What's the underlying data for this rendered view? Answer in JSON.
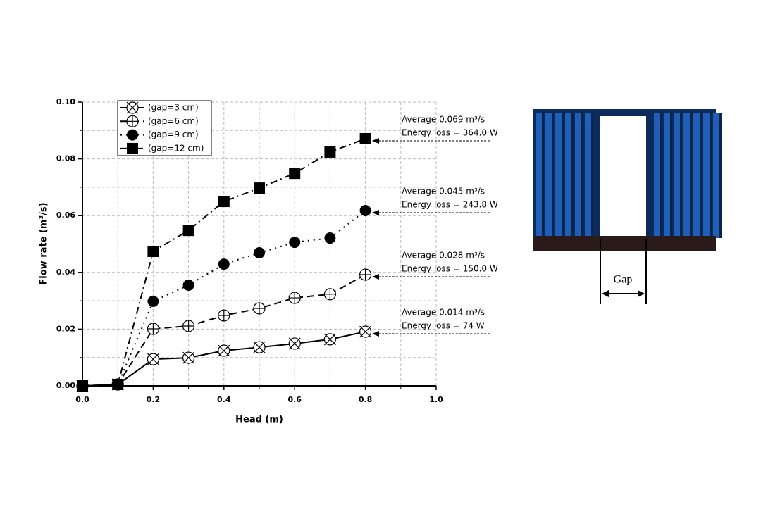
{
  "chart_data": {
    "type": "line",
    "xlabel": "Head (m)",
    "ylabel": "Flow rate (m³/s)",
    "x": [
      0,
      0.1,
      0.2,
      0.3,
      0.4,
      0.5,
      0.6,
      0.7,
      0.8
    ],
    "series": [
      {
        "name": "(gap=3 cm)",
        "color": "#000000",
        "marker": "x-circle",
        "dash": "solid",
        "values": [
          0,
          0.0005,
          0.0094,
          0.0099,
          0.0124,
          0.0136,
          0.0149,
          0.0164,
          0.0191
        ]
      },
      {
        "name": "(gap=6 cm)",
        "color": "#000000",
        "marker": "plus-circle",
        "dash": "dash",
        "values": [
          0,
          0.0005,
          0.0201,
          0.0211,
          0.0248,
          0.0273,
          0.031,
          0.0323,
          0.0392
        ]
      },
      {
        "name": "(gap=9 cm)",
        "color": "#000000",
        "marker": "circle",
        "dash": "dot",
        "values": [
          0,
          0.0005,
          0.0298,
          0.0355,
          0.0429,
          0.0469,
          0.0506,
          0.0521,
          0.0618
        ]
      },
      {
        "name": "(gap=12 cm)",
        "color": "#000000",
        "marker": "square",
        "dash": "dash-dot",
        "values": [
          0,
          0.0005,
          0.0474,
          0.0548,
          0.065,
          0.0697,
          0.0749,
          0.0824,
          0.0871
        ]
      }
    ],
    "xlim": [
      0,
      1.0
    ],
    "xticks": [
      {
        "value": 0,
        "label": "0.0"
      },
      {
        "value": 0.2,
        "label": "0.2"
      },
      {
        "value": 0.4,
        "label": "0.4"
      },
      {
        "value": 0.6,
        "label": "0.6"
      },
      {
        "value": 0.8,
        "label": "0.8"
      },
      {
        "value": 1.0,
        "label": "1.0"
      }
    ],
    "xminor": [
      0.1,
      0.3,
      0.5,
      0.7,
      0.9
    ],
    "ylim": [
      0,
      0.1
    ],
    "yticks": [
      {
        "value": 0,
        "label": "0.00"
      },
      {
        "value": 0.02,
        "label": "0.02"
      },
      {
        "value": 0.04,
        "label": "0.04"
      },
      {
        "value": 0.06,
        "label": "0.06"
      },
      {
        "value": 0.08,
        "label": "0.08"
      },
      {
        "value": 0.1,
        "label": "0.10"
      }
    ],
    "yminor": [
      0.01,
      0.03,
      0.05,
      0.07,
      0.09
    ],
    "grid": true,
    "legend": "upper left",
    "annotations": [
      {
        "average": "Average 0.069 m³/s",
        "energy": "Energy loss = 364.0 W"
      },
      {
        "average": "Average 0.045 m³/s",
        "energy": "Energy loss = 243.8 W"
      },
      {
        "average": "Average 0.028 m³/s",
        "energy": "Energy loss = 150.0 W"
      },
      {
        "average": "Average 0.014 m³/s",
        "energy": "Energy loss = 74 W"
      }
    ]
  },
  "photo": {
    "label": "Gap"
  }
}
